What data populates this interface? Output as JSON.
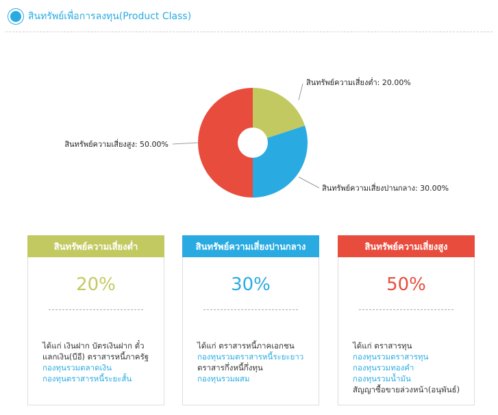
{
  "header": {
    "title": "สินทรัพย์เพื่อการลงทุน(Product Class)"
  },
  "chart_data": {
    "type": "pie",
    "slices": [
      {
        "label": "สินทรัพย์ความเสี่ยงต่ำ: 20.00%",
        "value": 20,
        "color": "#c3c961"
      },
      {
        "label": "สินทรัพย์ความเสี่ยงปานกลาง: 30.00%",
        "value": 30,
        "color": "#29abe2"
      },
      {
        "label": "สินทรัพย์ความเสี่ยงสูง: 50.00%",
        "value": 50,
        "color": "#e84c3d"
      }
    ]
  },
  "cards": [
    {
      "title": "สินทรัพย์ความเสี่ยงต่ำ",
      "percent": "20%",
      "color": "#c3c961",
      "lines": [
        {
          "text": "ได้แก่ เงินฝาก บัตรเงินฝาก ตั๋ว",
          "link": false
        },
        {
          "text": "แลกเงิน(บีอี) ตราสารหนี้ภาครัฐ",
          "link": false
        },
        {
          "text": "กองทุนรวมตลาดเงิน",
          "link": true
        },
        {
          "text": "กองทุนตราสารหนี้ระยะสั้น",
          "link": true
        }
      ]
    },
    {
      "title": "สินทรัพย์ความเสี่ยงปานกลาง",
      "percent": "30%",
      "color": "#29abe2",
      "lines": [
        {
          "text": "ได้แก่ ตราสารหนี้ภาคเอกชน",
          "link": false
        },
        {
          "text": "กองทุนรวมตราสารหนี้ระยะยาว",
          "link": true
        },
        {
          "text": "ตราสารกึ่งหนี้กึ่งทุน",
          "link": false
        },
        {
          "text": "กองทุนรวมผสม",
          "link": true
        }
      ]
    },
    {
      "title": "สินทรัพย์ความเสี่ยงสูง",
      "percent": "50%",
      "color": "#e84c3d",
      "lines": [
        {
          "text": "ได้แก่ ตราสารทุน",
          "link": false
        },
        {
          "text": "กองทุนรวมตราสารทุน",
          "link": true
        },
        {
          "text": "กองทุนรวมทองคำ",
          "link": true
        },
        {
          "text": "กองทุนรวมน้ำมัน",
          "link": true
        },
        {
          "text": "สัญญาซื้อขายล่วงหน้า(อนุพันธ์)",
          "link": false
        }
      ]
    }
  ]
}
